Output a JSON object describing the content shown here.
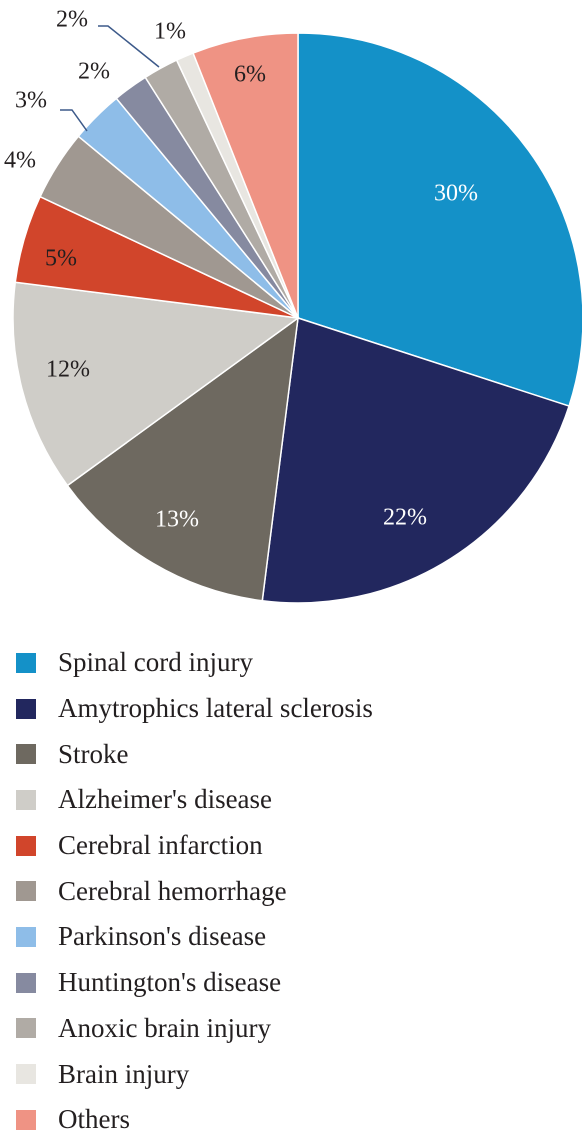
{
  "chart_data": {
    "type": "pie",
    "slices": [
      {
        "label": "Spinal cord injury",
        "value": 30,
        "display": "30%",
        "color": "#1491c8",
        "text_color": "#ffffff"
      },
      {
        "label": "Amytrophics lateral sclerosis",
        "value": 22,
        "display": "22%",
        "color": "#22275e",
        "text_color": "#ffffff"
      },
      {
        "label": "Stroke",
        "value": 13,
        "display": "13%",
        "color": "#6e6960",
        "text_color": "#ffffff"
      },
      {
        "label": "Alzheimer's disease",
        "value": 12,
        "display": "12%",
        "color": "#cfcdc8",
        "text_color": "#231f20"
      },
      {
        "label": "Cerebral infarction",
        "value": 5,
        "display": "5%",
        "color": "#d1452b",
        "text_color": "#231f20"
      },
      {
        "label": "Cerebral hemorrhage",
        "value": 4,
        "display": "4%",
        "color": "#a09891",
        "text_color": "#231f20"
      },
      {
        "label": "Parkinson's disease",
        "value": 3,
        "display": "3%",
        "color": "#8ebde8",
        "text_color": "#231f20"
      },
      {
        "label": "Huntington's disease",
        "value": 2,
        "display": "2%",
        "color": "#868aa0",
        "text_color": "#231f20"
      },
      {
        "label": "Anoxic brain injury",
        "value": 2,
        "display": "2%",
        "color": "#b0aba5",
        "text_color": "#231f20"
      },
      {
        "label": "Brain injury",
        "value": 1,
        "display": "1%",
        "color": "#e8e6e1",
        "text_color": "#231f20"
      },
      {
        "label": "Others",
        "value": 6,
        "display": "6%",
        "color": "#ef9384",
        "text_color": "#231f20"
      }
    ],
    "legend_position": "bottom"
  }
}
